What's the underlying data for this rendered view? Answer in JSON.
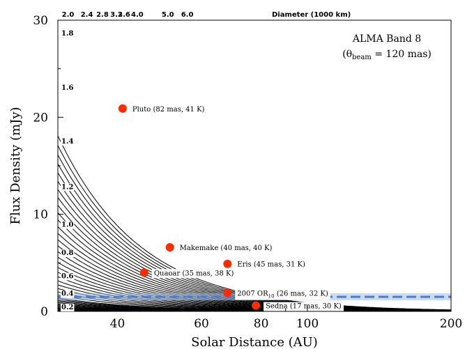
{
  "chart_data": {
    "type": "line",
    "annotation": {
      "line1": "ALMA Band 8",
      "line2_prefix": "(θ",
      "line2_sub": "beam",
      "line2_suffix": " = 120 mas)"
    },
    "xlabel": "Solar Distance (AU)",
    "ylabel": "Flux Density (mJy)",
    "top_axis_label": "Diameter (1000 km)",
    "xscale": "log",
    "xlim": [
      30,
      200
    ],
    "ylim": [
      0,
      30
    ],
    "xticks": [
      {
        "value": 40,
        "label": "40"
      },
      {
        "value": 60,
        "label": "60"
      },
      {
        "value": 80,
        "label": "80"
      },
      {
        "value": 100,
        "label": "100"
      },
      {
        "value": 200,
        "label": "200"
      }
    ],
    "yticks": [
      {
        "value": 0,
        "label": "0"
      },
      {
        "value": 10,
        "label": "10"
      },
      {
        "value": 20,
        "label": "20"
      },
      {
        "value": 30,
        "label": "30"
      }
    ],
    "diameter_labels_top": [
      {
        "label": "2.0",
        "x": 31.5
      },
      {
        "label": "2.4",
        "x": 34.5
      },
      {
        "label": "2.8",
        "x": 37.2
      },
      {
        "label": "3.2",
        "x": 39.8
      },
      {
        "label": "3.6",
        "x": 41.3
      },
      {
        "label": "4.0",
        "x": 44.0
      },
      {
        "label": "5.0",
        "x": 51.0
      },
      {
        "label": "6.0",
        "x": 56.0
      }
    ],
    "diameter_labels_left": [
      {
        "label": "1.8",
        "y": 28.7
      },
      {
        "label": "1.6",
        "y": 23.1
      },
      {
        "label": "1.4",
        "y": 17.6
      },
      {
        "label": "1.2",
        "y": 12.9
      },
      {
        "label": "1.0",
        "y": 9.0
      },
      {
        "label": "0.8",
        "y": 6.1
      },
      {
        "label": "0.6",
        "y": 3.7
      },
      {
        "label": "0.4",
        "y": 1.9
      },
      {
        "label": "0.2",
        "y": 0.5
      }
    ],
    "curve_diameters": [
      0.1,
      0.2,
      0.3,
      0.4,
      0.5,
      0.6,
      0.7,
      0.8,
      0.9,
      1.0,
      1.1,
      1.2,
      1.3,
      1.4,
      1.5,
      1.6,
      1.7,
      1.8,
      1.9,
      2.0,
      2.2,
      2.4,
      2.6,
      2.8,
      3.0,
      3.2,
      3.4,
      3.6,
      3.8,
      4.0,
      4.2,
      4.4,
      4.6,
      4.8,
      5.0,
      5.2,
      5.4,
      5.6,
      5.8,
      6.0,
      6.2,
      6.4,
      6.6,
      6.8,
      7.0,
      7.2
    ],
    "sensitivity_line": {
      "y": 1.5,
      "color": "#4a7fd0"
    },
    "point_color": "#ff2b00",
    "points": [
      {
        "label": "Pluto (82 mas, 41 K)",
        "x": 41,
        "y": 20.9
      },
      {
        "label": "Makemake (40 mas, 40 K)",
        "x": 51.5,
        "y": 6.6
      },
      {
        "label": "Eris (45 mas, 31 K)",
        "x": 68,
        "y": 4.9
      },
      {
        "label": "Quaoar (35 mas, 38 K)",
        "x": 45.5,
        "y": 4.0
      },
      {
        "label_main": "2007 OR",
        "label_sub": "10",
        "label_rest": " (26 mas, 32 K)",
        "x": 68,
        "y": 1.9
      },
      {
        "label": "Sedna (17 mas, 30 K)",
        "x": 78,
        "y": 0.6
      }
    ]
  }
}
